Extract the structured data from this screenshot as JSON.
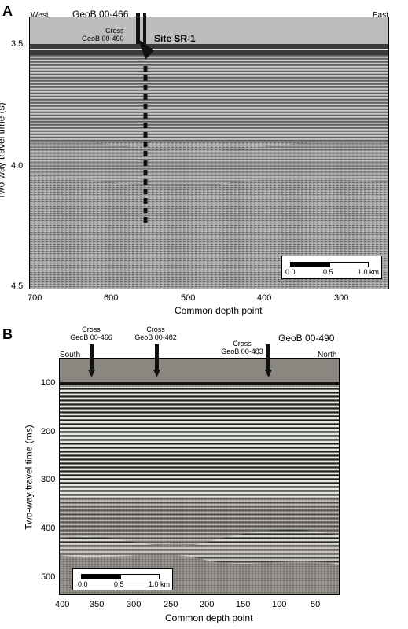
{
  "panel_a": {
    "letter": "A",
    "profile": "GeoB 00-466",
    "west_label": "West",
    "east_label": "East",
    "cross_label_1": "Cross",
    "cross_label_2": "GeoB 00-490",
    "site_label": "Site SR-1",
    "ylabel": "Two-way travel time (s)",
    "xlabel": "Common depth point",
    "y_ticks": [
      "3.5",
      "4.0",
      "4.5"
    ],
    "x_ticks": [
      "700",
      "600",
      "500",
      "400",
      "300"
    ],
    "scale_bar": {
      "labels": [
        "0.0",
        "0.5",
        "1.0 km"
      ]
    }
  },
  "panel_b": {
    "letter": "B",
    "profile": "GeoB 00-490",
    "south_label": "South",
    "north_label": "North",
    "crosses": [
      {
        "line1": "Cross",
        "line2": "GeoB 00-466"
      },
      {
        "line1": "Cross",
        "line2": "GeoB 00-482"
      },
      {
        "line1": "Cross",
        "line2": "GeoB 00-483"
      }
    ],
    "ylabel": "Two-way travel time (ms)",
    "xlabel": "Common depth point",
    "y_ticks": [
      "100",
      "200",
      "300",
      "400",
      "500"
    ],
    "x_ticks": [
      "400",
      "350",
      "300",
      "250",
      "200",
      "150",
      "100",
      "50"
    ],
    "scale_bar": {
      "labels": [
        "0.0",
        "0.5",
        "1.0 km"
      ]
    }
  },
  "colors": {
    "seismic_a": "#9a9a9a",
    "seismic_b": "#8e8a84",
    "marker": "#111111"
  }
}
